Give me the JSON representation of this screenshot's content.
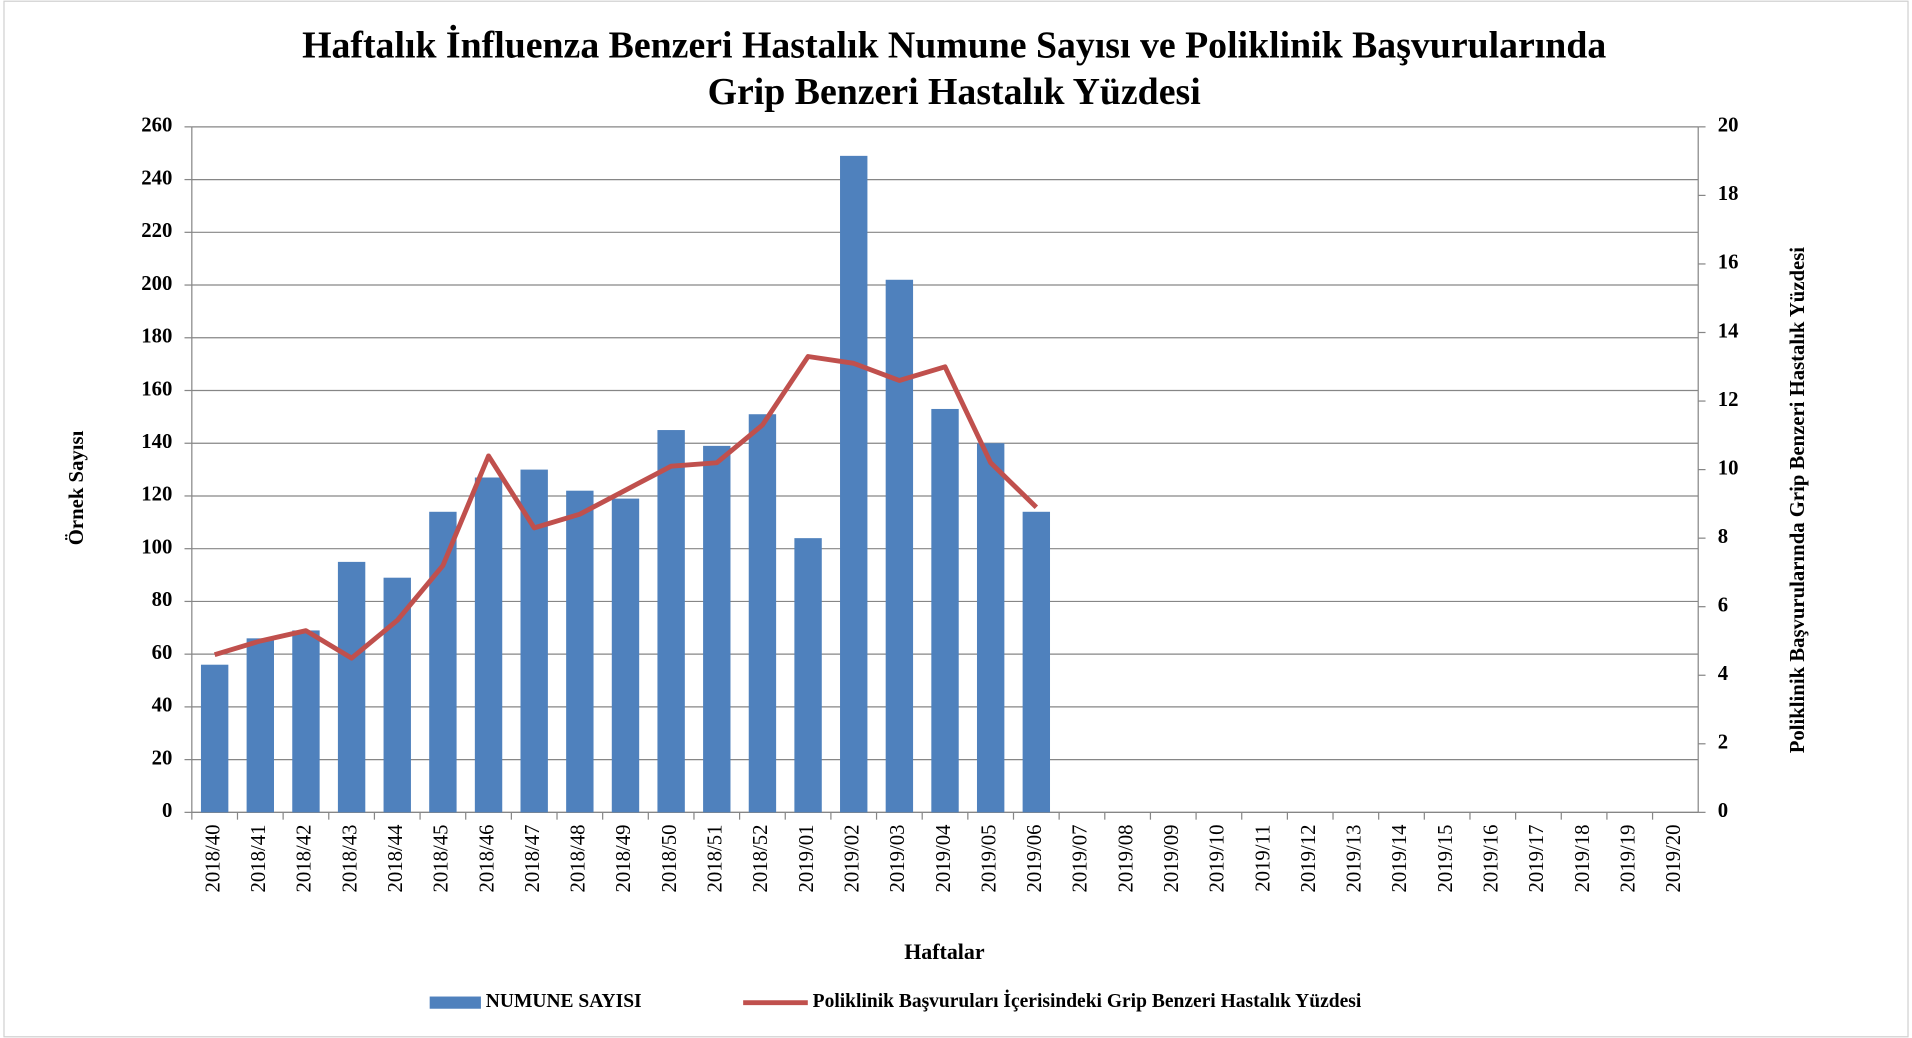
{
  "chart_data": {
    "type": "combo",
    "title": "Haftalık İnfluenza Benzeri Hastalık Numune Sayısı ve Poliklinik Başvurularında",
    "subtitle": "Grip Benzeri Hastalık Yüzdesi",
    "x_label": "Haftalar",
    "y_label": "Örnek Sayısı",
    "y2_label": "Poliklinik Başvurularında Grip Benzeri Hastalık Yüzdesi",
    "categories": [
      "2018/40",
      "2018/41",
      "2018/42",
      "2018/43",
      "2018/44",
      "2018/45",
      "2018/46",
      "2018/47",
      "2018/48",
      "2018/49",
      "2018/50",
      "2018/51",
      "2018/52",
      "2019/01",
      "2019/02",
      "2019/03",
      "2019/04",
      "2019/05",
      "2019/06",
      "2019/07",
      "2019/08",
      "2019/09",
      "2019/10",
      "2019/11",
      "2019/12",
      "2019/13",
      "2019/14",
      "2019/15",
      "2019/16",
      "2019/17",
      "2019/18",
      "2019/19",
      "2019/20"
    ],
    "series": [
      {
        "name": "NUMUNE SAYISI",
        "type": "bar",
        "color": "#4f81bd",
        "values": [
          56,
          66,
          69,
          95,
          89,
          114,
          127,
          130,
          122,
          119,
          145,
          139,
          151,
          104,
          249,
          202,
          153,
          140,
          114,
          null,
          null,
          null,
          null,
          null,
          null,
          null,
          null,
          null,
          null,
          null,
          null,
          null,
          null
        ]
      },
      {
        "name": "Poliklinik Başvuruları İçerisindeki Grip Benzeri Hastalık Yüzdesi",
        "type": "line",
        "axis": "y2",
        "color": "#c0504d",
        "values": [
          4.6,
          5.0,
          5.3,
          4.5,
          5.6,
          7.2,
          10.4,
          8.3,
          8.7,
          9.4,
          10.1,
          10.2,
          11.3,
          13.3,
          13.1,
          12.6,
          13.0,
          10.2,
          8.9,
          null,
          null,
          null,
          null,
          null,
          null,
          null,
          null,
          null,
          null,
          null,
          null,
          null,
          null
        ]
      }
    ],
    "ylim": [
      0,
      260
    ],
    "yticks": [
      0,
      20,
      40,
      60,
      80,
      100,
      120,
      140,
      160,
      180,
      200,
      220,
      240,
      260
    ],
    "y2lim": [
      0,
      20
    ],
    "y2ticks": [
      0,
      2,
      4,
      6,
      8,
      10,
      12,
      14,
      16,
      18,
      20
    ],
    "grid": true,
    "legend": "bottom"
  }
}
